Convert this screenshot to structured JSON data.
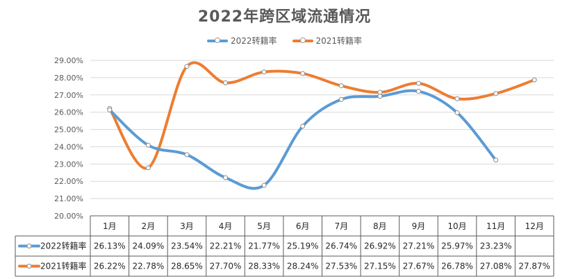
{
  "chart_data": {
    "type": "line",
    "title": "2022年跨区域流通情况",
    "categories": [
      "1月",
      "2月",
      "3月",
      "4月",
      "5月",
      "6月",
      "7月",
      "8月",
      "9月",
      "10月",
      "11月",
      "12月"
    ],
    "series": [
      {
        "name": "2022转籍率",
        "color": "#5b9bd5",
        "values": [
          26.13,
          24.09,
          23.54,
          22.21,
          21.77,
          25.19,
          26.74,
          26.92,
          27.21,
          25.97,
          23.23,
          null
        ],
        "labels": [
          "26.13%",
          "24.09%",
          "23.54%",
          "22.21%",
          "21.77%",
          "25.19%",
          "26.74%",
          "26.92%",
          "27.21%",
          "25.97%",
          "23.23%",
          ""
        ]
      },
      {
        "name": "2021转籍率",
        "color": "#ed7d31",
        "values": [
          26.22,
          22.78,
          28.65,
          27.7,
          28.33,
          28.24,
          27.53,
          27.15,
          27.67,
          26.78,
          27.08,
          27.87
        ],
        "labels": [
          "26.22%",
          "22.78%",
          "28.65%",
          "27.70%",
          "28.33%",
          "28.24%",
          "27.53%",
          "27.15%",
          "27.67%",
          "26.78%",
          "27.08%",
          "27.87%"
        ]
      }
    ],
    "ylim": [
      20,
      29
    ],
    "ytick_labels": [
      "20.00%",
      "21.00%",
      "22.00%",
      "23.00%",
      "24.00%",
      "25.00%",
      "26.00%",
      "27.00%",
      "28.00%",
      "29.00%"
    ],
    "grid": true,
    "legend": "top-center",
    "xlabel": "",
    "ylabel": ""
  }
}
